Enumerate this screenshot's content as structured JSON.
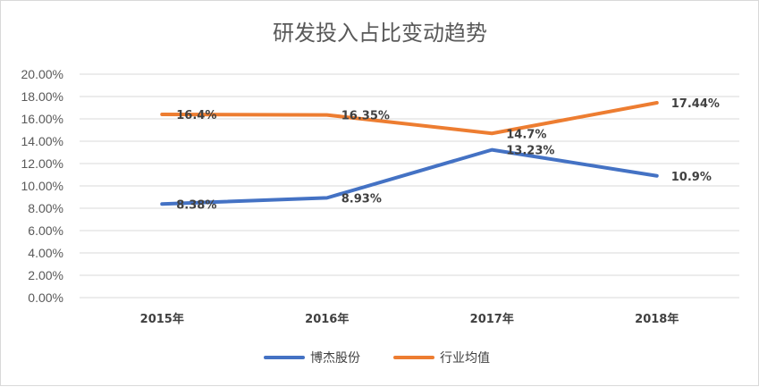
{
  "chart_data": {
    "type": "line",
    "title": "研发投入占比变动趋势",
    "categories": [
      "2015年",
      "2016年",
      "2017年",
      "2018年"
    ],
    "series": [
      {
        "name": "博杰股份",
        "values": [
          8.38,
          8.93,
          13.23,
          10.9
        ],
        "labels": [
          "8.38%",
          "8.93%",
          "13.23%",
          "10.9%"
        ],
        "color": "#4472c4"
      },
      {
        "name": "行业均值",
        "values": [
          16.4,
          16.35,
          14.7,
          17.44
        ],
        "labels": [
          "16.4%",
          "16.35%",
          "14.7%",
          "17.44%"
        ],
        "color": "#ed7d31"
      }
    ],
    "ylim": [
      0,
      20
    ],
    "yticks": [
      "0.00%",
      "2.00%",
      "4.00%",
      "6.00%",
      "8.00%",
      "10.00%",
      "12.00%",
      "14.00%",
      "16.00%",
      "18.00%",
      "20.00%"
    ],
    "grid": true,
    "legend": "bottom",
    "gridColor": "#d9d9d9"
  }
}
